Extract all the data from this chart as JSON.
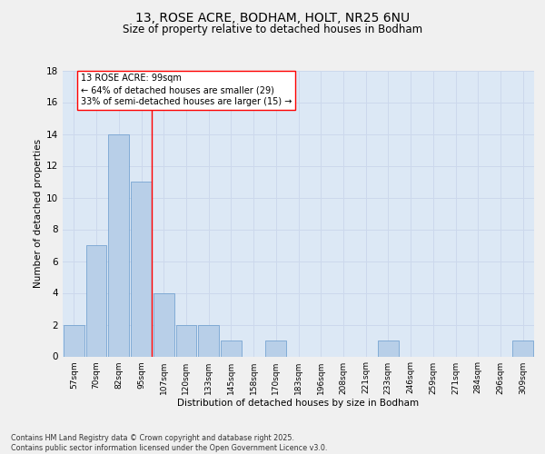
{
  "title1": "13, ROSE ACRE, BODHAM, HOLT, NR25 6NU",
  "title2": "Size of property relative to detached houses in Bodham",
  "xlabel": "Distribution of detached houses by size in Bodham",
  "ylabel": "Number of detached properties",
  "bar_labels": [
    "57sqm",
    "70sqm",
    "82sqm",
    "95sqm",
    "107sqm",
    "120sqm",
    "133sqm",
    "145sqm",
    "158sqm",
    "170sqm",
    "183sqm",
    "196sqm",
    "208sqm",
    "221sqm",
    "233sqm",
    "246sqm",
    "259sqm",
    "271sqm",
    "284sqm",
    "296sqm",
    "309sqm"
  ],
  "bar_values": [
    2,
    7,
    14,
    11,
    4,
    2,
    2,
    1,
    0,
    1,
    0,
    0,
    0,
    0,
    1,
    0,
    0,
    0,
    0,
    0,
    1
  ],
  "bar_color": "#b8cfe8",
  "bar_edge_color": "#6699cc",
  "grid_color": "#ccd8ec",
  "bg_color": "#dce8f5",
  "vline_color": "red",
  "annotation_text": "13 ROSE ACRE: 99sqm\n← 64% of detached houses are smaller (29)\n33% of semi-detached houses are larger (15) →",
  "annotation_box_color": "white",
  "annotation_box_edge": "red",
  "ylim": [
    0,
    18
  ],
  "yticks": [
    0,
    2,
    4,
    6,
    8,
    10,
    12,
    14,
    16,
    18
  ],
  "footer": "Contains HM Land Registry data © Crown copyright and database right 2025.\nContains public sector information licensed under the Open Government Licence v3.0.",
  "fig_bg": "#f0f0f0"
}
